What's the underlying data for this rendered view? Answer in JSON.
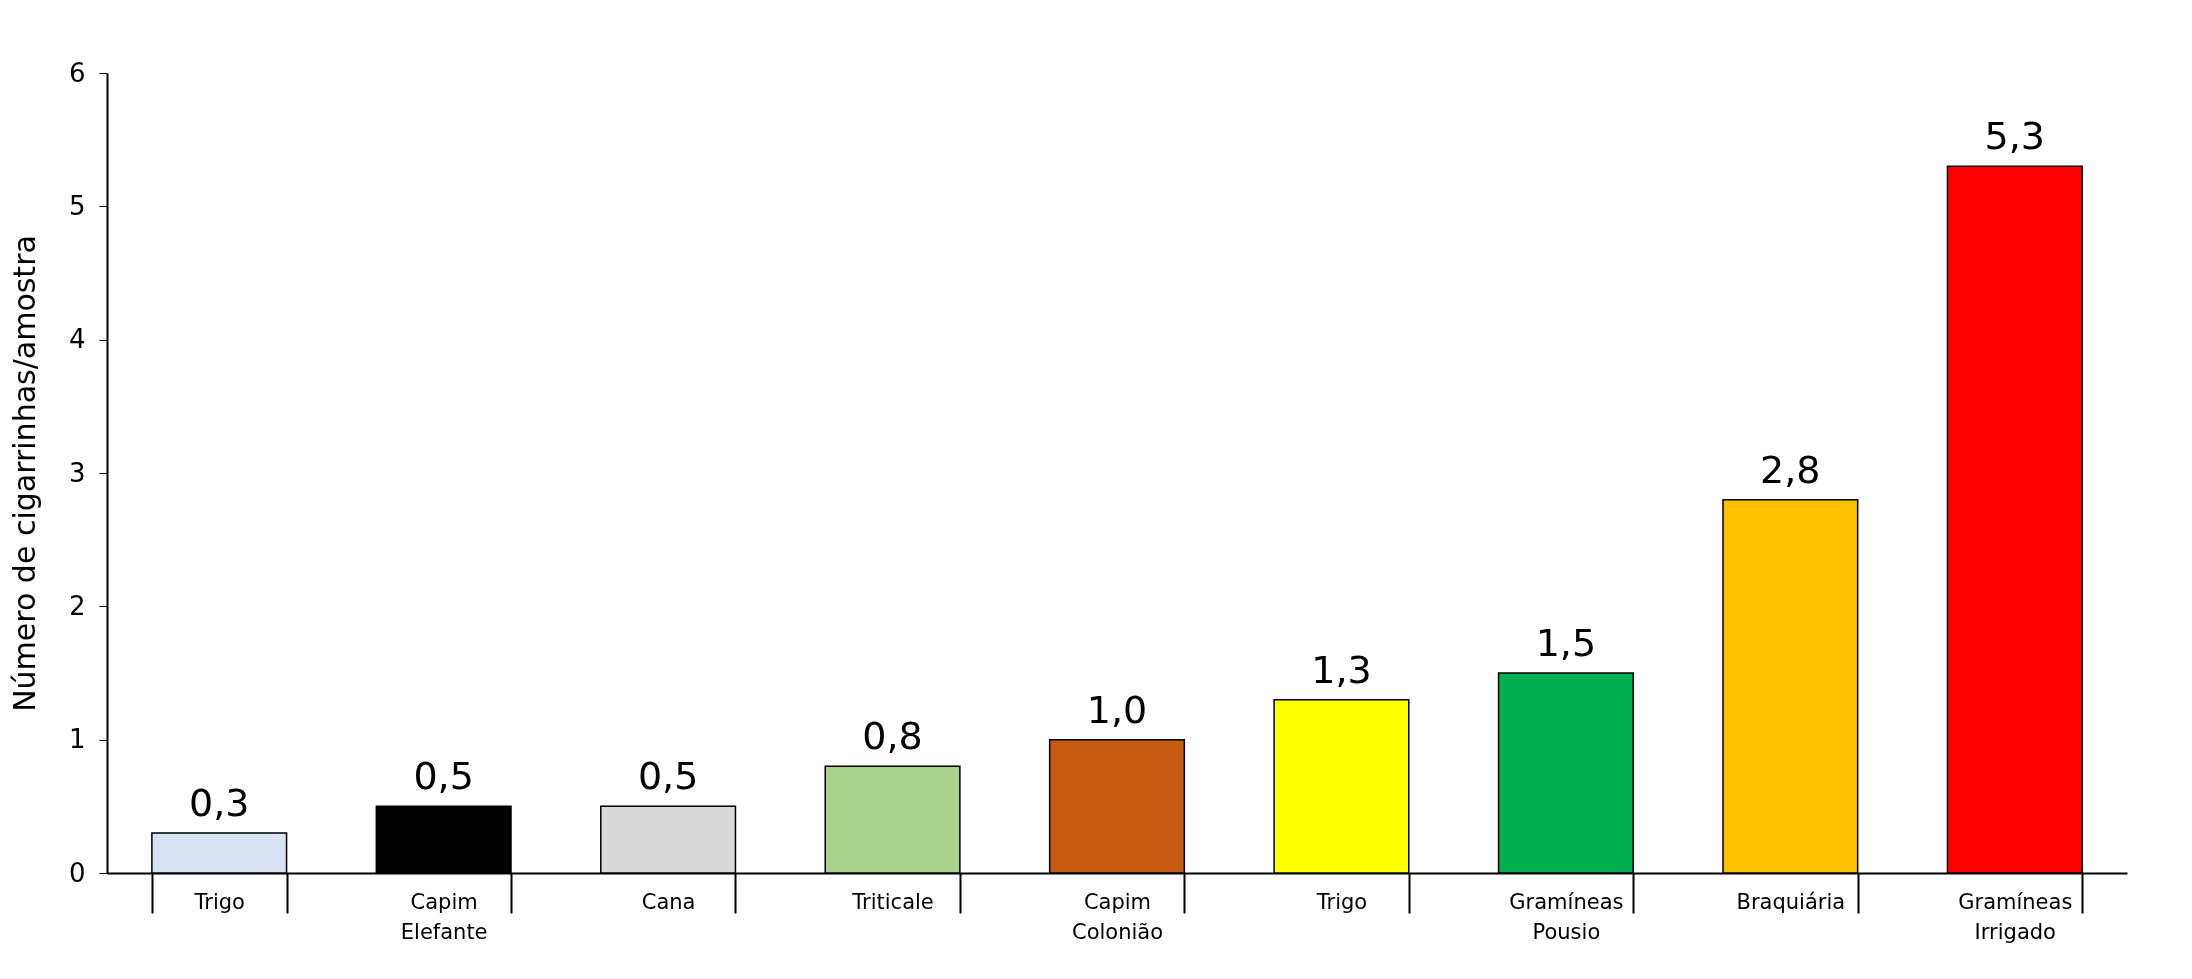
{
  "chart_data": {
    "type": "bar",
    "ylabel": "Número de cigarrinhas/amostra",
    "categories": [
      "Trigo",
      "Capim Elefante",
      "Cana",
      "Triticale",
      "Capim Colonião",
      "Trigo",
      "Gramíneas Pousio",
      "Braquiária",
      "Gramíneas Irrigado"
    ],
    "values": [
      0.3,
      0.5,
      0.5,
      0.8,
      1.0,
      1.3,
      1.5,
      2.8,
      5.3
    ],
    "value_labels": [
      "0,3",
      "0,5",
      "0,5",
      "0,8",
      "1,0",
      "1,3",
      "1,5",
      "2,8",
      "5,3"
    ],
    "colors": [
      "#dae3f3",
      "#000000",
      "#d9d9d9",
      "#a9d18e",
      "#c55a11",
      "#ffff00",
      "#00b050",
      "#ffc000",
      "#ff0000"
    ],
    "ylim": [
      0,
      6
    ],
    "yticks": [
      0,
      1,
      2,
      3,
      4,
      5,
      6
    ],
    "grid": false
  }
}
